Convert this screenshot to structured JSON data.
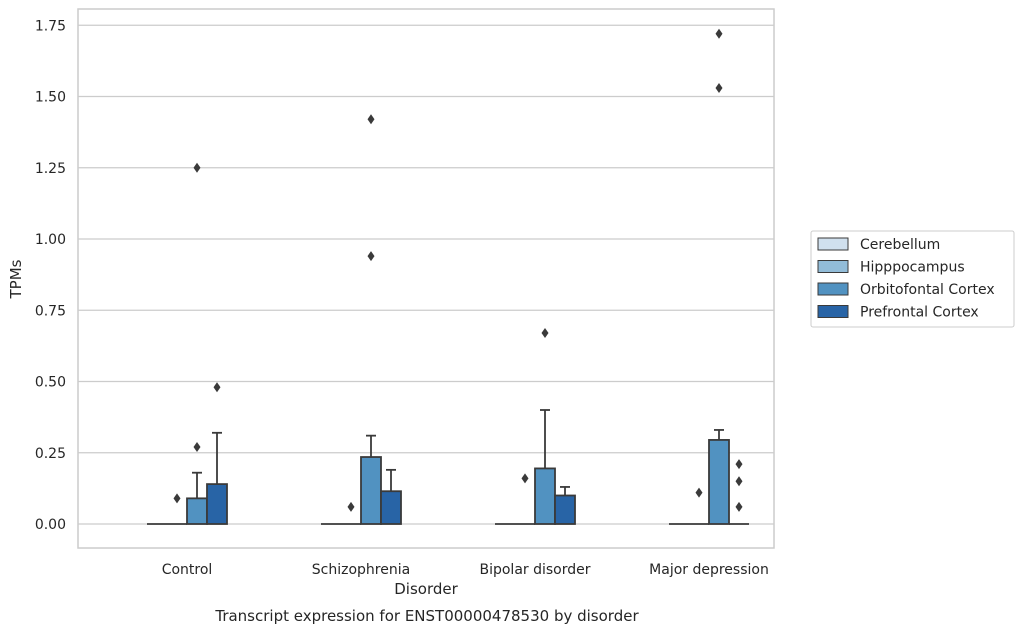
{
  "caption": "Transcript expression for ENST00000478530 by disorder",
  "chart_data": {
    "type": "bar",
    "xlabel": "Disorder",
    "ylabel": "TPMs",
    "ylim": [
      -0.085,
      1.81
    ],
    "yticks": [
      "0.00",
      "0.25",
      "0.50",
      "0.75",
      "1.00",
      "1.25",
      "1.50",
      "1.75"
    ],
    "ytick_values": [
      0,
      0.25,
      0.5,
      0.75,
      1.0,
      1.25,
      1.5,
      1.75
    ],
    "grid": "horizontal",
    "legend_position": "right",
    "categories": [
      "Control",
      "Schizophrenia",
      "Bipolar disorder",
      "Major depression"
    ],
    "series": [
      {
        "name": "Cerebellum",
        "color": "#d0e0ee",
        "values": [
          0,
          0,
          0,
          0
        ],
        "err_upper": [
          null,
          null,
          null,
          null
        ],
        "outliers": [
          [],
          [],
          [],
          []
        ]
      },
      {
        "name": "Hipppocampus",
        "color": "#92bcd8",
        "values": [
          0,
          0,
          0,
          0
        ],
        "err_upper": [
          null,
          null,
          null,
          null
        ],
        "outliers": [
          [
            0.09
          ],
          [
            0.06
          ],
          [
            0.16
          ],
          [
            0.11
          ]
        ]
      },
      {
        "name": "Orbitofontal Cortex",
        "color": "#5192c1",
        "values": [
          0.09,
          0.235,
          0.195,
          0.295
        ],
        "err_upper": [
          0.18,
          0.31,
          0.4,
          0.33
        ],
        "outliers": [
          [
            0.27,
            1.25
          ],
          [
            0.94,
            1.42
          ],
          [
            0.67
          ],
          [
            1.53,
            1.72
          ]
        ]
      },
      {
        "name": "Prefrontal Cortex",
        "color": "#2864a6",
        "values": [
          0.14,
          0.115,
          0.1,
          0
        ],
        "err_upper": [
          0.32,
          0.19,
          0.13,
          null
        ],
        "outliers": [
          [
            0.48
          ],
          [],
          [],
          [
            0.06,
            0.15,
            0.21
          ]
        ]
      }
    ]
  }
}
